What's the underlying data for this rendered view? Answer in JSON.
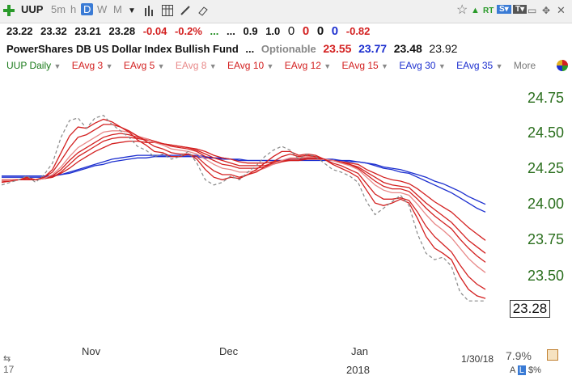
{
  "toolbar": {
    "symbol": "UUP",
    "intervals": [
      "5m",
      "h",
      "D",
      "W",
      "M"
    ],
    "selected_interval": "D",
    "rt_label": "RT"
  },
  "quote": {
    "last": "23.22",
    "high": "23.32",
    "low": "23.21",
    "close": "23.28",
    "change": "-0.04",
    "change_pct": "-0.2%",
    "dots1": "...",
    "dots2": "...",
    "ratio": "0.9",
    "v1": "1.0",
    "z1": "0",
    "z2": "0",
    "z3": "0",
    "z4": "0",
    "delta": "-0.82"
  },
  "info": {
    "name": "PowerShares DB US Dollar Index Bullish Fund",
    "dots": "...",
    "optionable": "Optionable",
    "p1": "23.55",
    "p2": "23.77",
    "p3": "23.48",
    "p4": "23.92"
  },
  "indicators": [
    {
      "label": "UUP Daily",
      "color": "#1a7a1a"
    },
    {
      "label": "EAvg 3",
      "color": "#d32020"
    },
    {
      "label": "EAvg 5",
      "color": "#d32020"
    },
    {
      "label": "EAvg 8",
      "color": "#e88888"
    },
    {
      "label": "EAvg 10",
      "color": "#d32020"
    },
    {
      "label": "EAvg 12",
      "color": "#d32020"
    },
    {
      "label": "EAvg 15",
      "color": "#d32020"
    },
    {
      "label": "EAvg 30",
      "color": "#1c2fcf"
    },
    {
      "label": "EAvg 35",
      "color": "#1c2fcf"
    },
    {
      "label": "More",
      "color": "#777777"
    }
  ],
  "footer": {
    "date": "1/30/18",
    "pct": "7.9%",
    "year": "2018",
    "left_num": "17",
    "last_price": "23.28"
  },
  "chart_data": {
    "type": "line",
    "y_ticks": [
      "24.75",
      "24.50",
      "24.25",
      "24.00",
      "23.75",
      "23.50"
    ],
    "x_labels": [
      "Nov",
      "Dec",
      "Jan"
    ],
    "ylim": [
      23.2,
      24.85
    ],
    "series": [
      {
        "name": "UUP Daily",
        "color": "#888888",
        "style": "dashed",
        "values": [
          24.18,
          24.2,
          24.22,
          24.25,
          24.2,
          24.26,
          24.35,
          24.55,
          24.68,
          24.7,
          24.62,
          24.7,
          24.72,
          24.65,
          24.6,
          24.55,
          24.48,
          24.45,
          24.4,
          24.42,
          24.38,
          24.4,
          24.44,
          24.35,
          24.22,
          24.18,
          24.2,
          24.25,
          24.22,
          24.28,
          24.33,
          24.4,
          24.45,
          24.48,
          24.45,
          24.38,
          24.42,
          24.4,
          24.35,
          24.3,
          24.28,
          24.25,
          24.2,
          24.05,
          23.95,
          24.0,
          24.05,
          24.1,
          24.02,
          23.8,
          23.65,
          23.6,
          23.62,
          23.55,
          23.35,
          23.28,
          23.28,
          23.28
        ]
      },
      {
        "name": "EAvg 3",
        "color": "#d32020",
        "values": [
          24.2,
          24.21,
          24.22,
          24.24,
          24.22,
          24.24,
          24.3,
          24.43,
          24.56,
          24.63,
          24.62,
          24.66,
          24.69,
          24.67,
          24.63,
          24.59,
          24.53,
          24.49,
          24.44,
          24.43,
          24.4,
          24.4,
          24.42,
          24.38,
          24.3,
          24.24,
          24.22,
          24.24,
          24.23,
          24.26,
          24.3,
          24.35,
          24.4,
          24.44,
          24.44,
          24.41,
          24.42,
          24.41,
          24.38,
          24.34,
          24.31,
          24.28,
          24.24,
          24.14,
          24.04,
          24.02,
          24.04,
          24.07,
          24.04,
          23.92,
          23.78,
          23.69,
          23.65,
          23.6,
          23.47,
          23.37,
          23.32,
          23.3
        ]
      },
      {
        "name": "EAvg 5",
        "color": "#d32020",
        "values": [
          24.21,
          24.21,
          24.22,
          24.23,
          24.22,
          24.24,
          24.28,
          24.37,
          24.47,
          24.55,
          24.57,
          24.61,
          24.65,
          24.65,
          24.63,
          24.6,
          24.56,
          24.52,
          24.48,
          24.46,
          24.43,
          24.42,
          24.42,
          24.4,
          24.34,
          24.29,
          24.26,
          24.26,
          24.24,
          24.26,
          24.28,
          24.32,
          24.36,
          24.4,
          24.42,
          24.4,
          24.41,
          24.4,
          24.38,
          24.35,
          24.33,
          24.3,
          24.27,
          24.19,
          24.11,
          24.07,
          24.07,
          24.08,
          24.06,
          23.97,
          23.86,
          23.78,
          23.72,
          23.66,
          23.56,
          23.47,
          23.41,
          23.37
        ]
      },
      {
        "name": "EAvg 8",
        "color": "#e88888",
        "values": [
          24.22,
          24.22,
          24.22,
          24.23,
          24.22,
          24.23,
          24.26,
          24.32,
          24.4,
          24.47,
          24.51,
          24.55,
          24.59,
          24.6,
          24.6,
          24.59,
          24.56,
          24.54,
          24.51,
          24.49,
          24.46,
          24.45,
          24.44,
          24.42,
          24.38,
          24.34,
          24.31,
          24.3,
          24.28,
          24.28,
          24.29,
          24.31,
          24.34,
          24.37,
          24.39,
          24.39,
          24.4,
          24.4,
          24.38,
          24.37,
          24.35,
          24.33,
          24.3,
          24.24,
          24.18,
          24.14,
          24.12,
          24.12,
          24.1,
          24.03,
          23.95,
          23.88,
          23.83,
          23.77,
          23.69,
          23.61,
          23.55,
          23.5
        ]
      },
      {
        "name": "EAvg 10",
        "color": "#d32020",
        "values": [
          24.22,
          24.22,
          24.22,
          24.23,
          24.22,
          24.23,
          24.25,
          24.3,
          24.37,
          24.43,
          24.47,
          24.51,
          24.55,
          24.57,
          24.58,
          24.57,
          24.55,
          24.54,
          24.52,
          24.5,
          24.48,
          24.47,
          24.46,
          24.44,
          24.4,
          24.37,
          24.34,
          24.33,
          24.31,
          24.31,
          24.31,
          24.32,
          24.34,
          24.36,
          24.38,
          24.38,
          24.39,
          24.39,
          24.38,
          24.37,
          24.35,
          24.34,
          24.31,
          24.26,
          24.21,
          24.17,
          24.15,
          24.15,
          24.13,
          24.07,
          24.0,
          23.94,
          23.89,
          23.84,
          23.76,
          23.69,
          23.63,
          23.58
        ]
      },
      {
        "name": "EAvg 12",
        "color": "#d32020",
        "values": [
          24.22,
          24.22,
          24.22,
          24.23,
          24.22,
          24.23,
          24.24,
          24.28,
          24.34,
          24.4,
          24.44,
          24.48,
          24.52,
          24.54,
          24.55,
          24.55,
          24.54,
          24.53,
          24.52,
          24.5,
          24.49,
          24.48,
          24.47,
          24.45,
          24.42,
          24.39,
          24.37,
          24.35,
          24.33,
          24.33,
          24.33,
          24.33,
          24.35,
          24.36,
          24.37,
          24.37,
          24.38,
          24.38,
          24.38,
          24.37,
          24.36,
          24.34,
          24.32,
          24.28,
          24.24,
          24.2,
          24.18,
          24.17,
          24.16,
          24.1,
          24.04,
          23.99,
          23.94,
          23.89,
          23.82,
          23.75,
          23.7,
          23.65
        ]
      },
      {
        "name": "EAvg 15",
        "color": "#d32020",
        "values": [
          24.22,
          24.22,
          24.22,
          24.22,
          24.22,
          24.23,
          24.24,
          24.27,
          24.31,
          24.36,
          24.4,
          24.44,
          24.47,
          24.5,
          24.51,
          24.52,
          24.52,
          24.51,
          24.51,
          24.5,
          24.49,
          24.48,
          24.47,
          24.46,
          24.44,
          24.41,
          24.39,
          24.38,
          24.36,
          24.35,
          24.35,
          24.35,
          24.36,
          24.37,
          24.37,
          24.37,
          24.38,
          24.38,
          24.38,
          24.37,
          24.36,
          24.35,
          24.34,
          24.3,
          24.27,
          24.24,
          24.22,
          24.21,
          24.19,
          24.15,
          24.1,
          24.05,
          24.01,
          23.97,
          23.91,
          23.85,
          23.8,
          23.75
        ]
      },
      {
        "name": "EAvg 30",
        "color": "#1c2fcf",
        "values": [
          24.24,
          24.24,
          24.24,
          24.24,
          24.24,
          24.24,
          24.25,
          24.26,
          24.28,
          24.3,
          24.32,
          24.34,
          24.36,
          24.38,
          24.39,
          24.4,
          24.41,
          24.41,
          24.41,
          24.41,
          24.41,
          24.41,
          24.41,
          24.41,
          24.4,
          24.39,
          24.39,
          24.38,
          24.38,
          24.37,
          24.37,
          24.37,
          24.37,
          24.37,
          24.38,
          24.38,
          24.38,
          24.38,
          24.38,
          24.38,
          24.37,
          24.37,
          24.36,
          24.35,
          24.33,
          24.31,
          24.3,
          24.28,
          24.27,
          24.24,
          24.21,
          24.18,
          24.15,
          24.12,
          24.08,
          24.04,
          24.0,
          23.97
        ]
      },
      {
        "name": "EAvg 35",
        "color": "#1c2fcf",
        "values": [
          24.25,
          24.25,
          24.25,
          24.25,
          24.25,
          24.25,
          24.25,
          24.26,
          24.27,
          24.29,
          24.31,
          24.33,
          24.34,
          24.36,
          24.37,
          24.38,
          24.39,
          24.39,
          24.4,
          24.4,
          24.4,
          24.4,
          24.4,
          24.4,
          24.39,
          24.39,
          24.38,
          24.38,
          24.37,
          24.37,
          24.37,
          24.37,
          24.37,
          24.37,
          24.37,
          24.37,
          24.37,
          24.37,
          24.37,
          24.37,
          24.37,
          24.36,
          24.36,
          24.35,
          24.34,
          24.32,
          24.31,
          24.3,
          24.28,
          24.26,
          24.24,
          24.21,
          24.19,
          24.16,
          24.13,
          24.09,
          24.06,
          24.03
        ]
      }
    ]
  }
}
